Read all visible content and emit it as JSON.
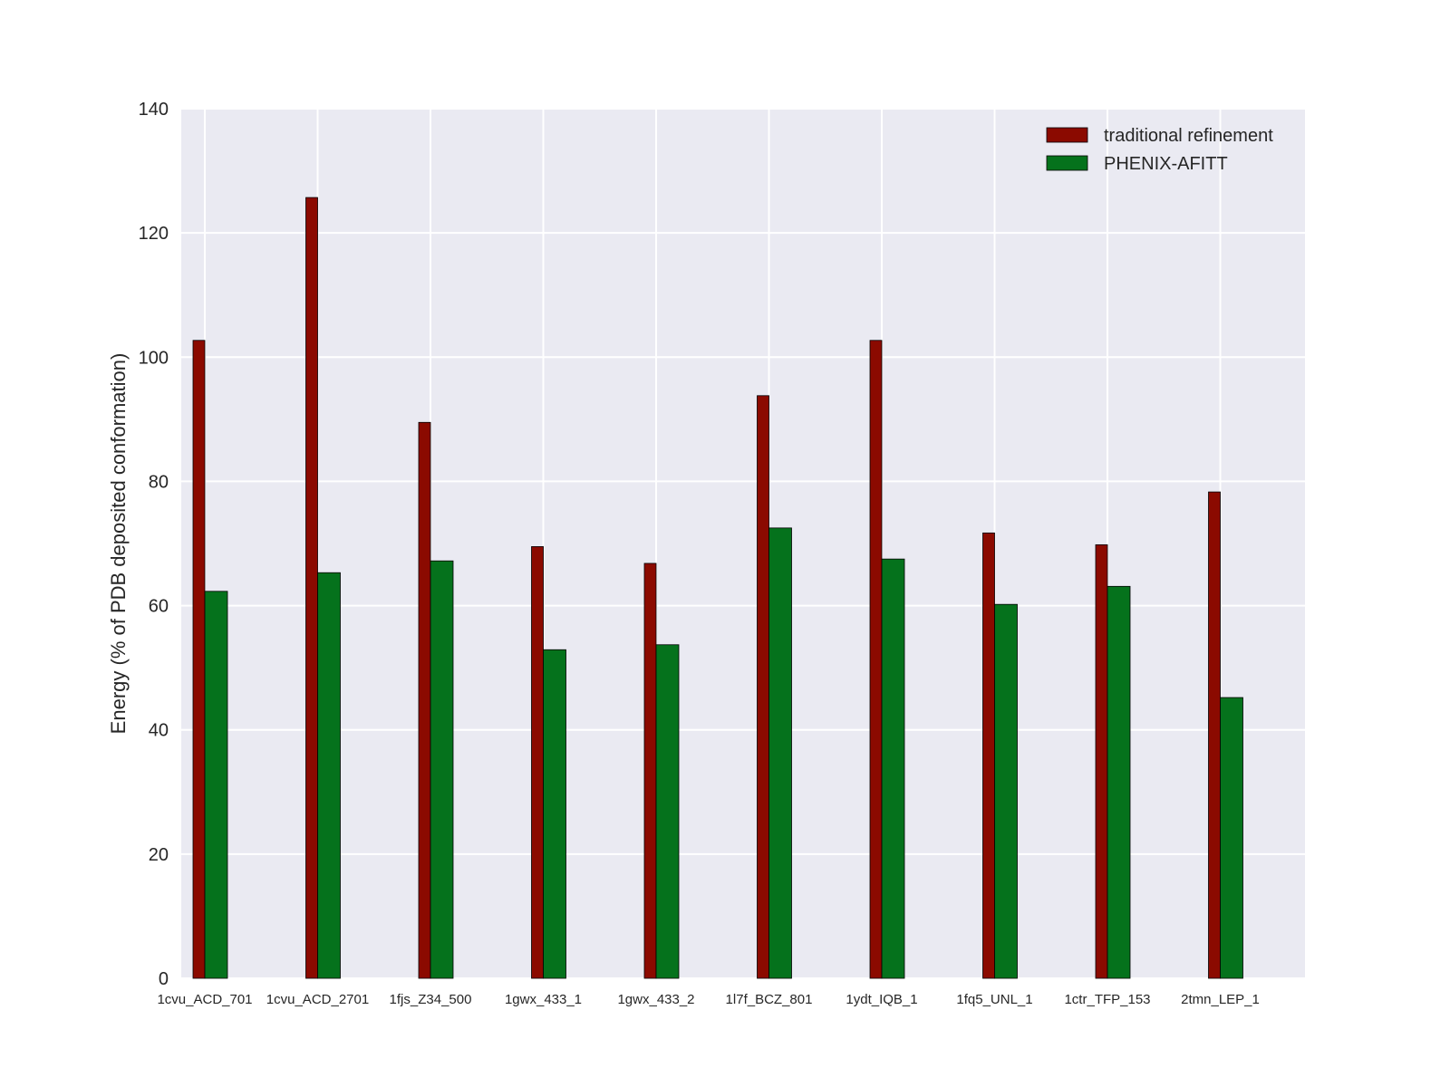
{
  "chart_data": {
    "type": "bar",
    "title": "",
    "xlabel": "",
    "ylabel": "Energy (% of PDB deposited conformation)",
    "ylim": [
      0,
      140
    ],
    "yticks": [
      0,
      20,
      40,
      60,
      80,
      100,
      120,
      140
    ],
    "grid": true,
    "legend_position": "top-right",
    "categories": [
      "1cvu_ACD_701",
      "1cvu_ACD_2701",
      "1fjs_Z34_500",
      "1gwx_433_1",
      "1gwx_433_2",
      "1l7f_BCZ_801",
      "1ydt_IQB_1",
      "1fq5_UNL_1",
      "1ctr_TFP_153",
      "2tmn_LEP_1"
    ],
    "series": [
      {
        "name": "traditional refinement",
        "color": "#8b0a00",
        "values": [
          102.7,
          125.7,
          89.5,
          69.5,
          66.8,
          93.8,
          102.7,
          71.7,
          69.8,
          78.3
        ]
      },
      {
        "name": "PHENIX-AFITT",
        "color": "#05721c",
        "values": [
          62.3,
          65.3,
          67.2,
          52.9,
          53.7,
          72.5,
          67.5,
          60.2,
          63.1,
          45.2
        ]
      }
    ],
    "background_color": "#eaeaf2"
  }
}
